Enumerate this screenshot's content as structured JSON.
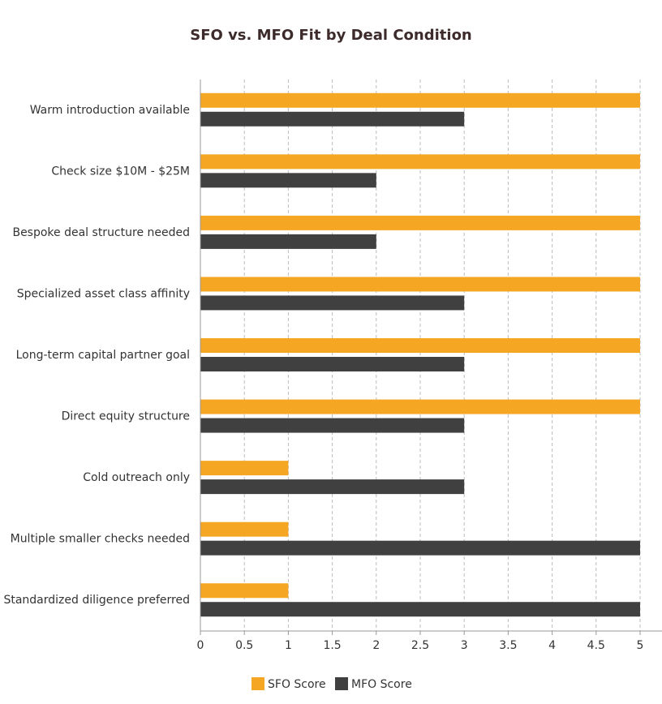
{
  "chart_data": {
    "type": "hbar",
    "title": "SFO vs. MFO Fit by Deal Condition",
    "categories": [
      "Warm introduction available",
      "Check size $10M - $25M",
      "Bespoke deal structure needed",
      "Specialized asset class affinity",
      "Long-term capital partner goal",
      "Direct equity structure",
      "Cold outreach only",
      "Multiple smaller checks needed",
      "Standardized diligence preferred"
    ],
    "series": [
      {
        "name": "SFO Score",
        "color": "#f5a623",
        "values": [
          5,
          5,
          5,
          5,
          5,
          5,
          1,
          1,
          1
        ]
      },
      {
        "name": "MFO Score",
        "color": "#404040",
        "values": [
          3,
          2,
          2,
          3,
          3,
          3,
          3,
          5,
          5
        ]
      }
    ],
    "xlim": [
      0,
      5
    ],
    "xticks": [
      0,
      0.5,
      1,
      1.5,
      2,
      2.5,
      3,
      3.5,
      4,
      4.5,
      5
    ],
    "grid": true
  }
}
